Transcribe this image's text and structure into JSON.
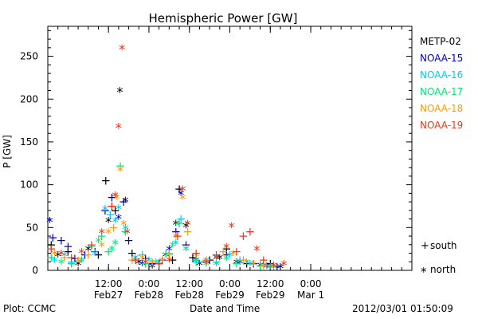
{
  "chart_data": {
    "type": "scatter",
    "title": "Hemispheric Power [GW]",
    "xlabel": "Date and Time",
    "ylabel": "P [GW]",
    "ylim": [
      0,
      285
    ],
    "xlim_hours": [
      0,
      108
    ],
    "x_units": "hours after 2012-02-26 18:00 UT",
    "yticks": [
      0,
      50,
      100,
      150,
      200,
      250
    ],
    "xticks": [
      {
        "h": 18,
        "time": "12:00",
        "date": "Feb27"
      },
      {
        "h": 30,
        "time": "0:00",
        "date": "Feb28"
      },
      {
        "h": 42,
        "time": "12:00",
        "date": "Feb28"
      },
      {
        "h": 54,
        "time": "0:00",
        "date": "Feb29"
      },
      {
        "h": 66,
        "time": "12:00",
        "date": "Feb29"
      },
      {
        "h": 78,
        "time": "0:00",
        "date": "Mar 1"
      }
    ],
    "grid": false,
    "legend": {
      "placement": "right",
      "hemisphere_keys": [
        {
          "symbol": "+",
          "label": "south"
        },
        {
          "symbol": "*",
          "label": "north"
        }
      ]
    },
    "series": [
      {
        "name": "METP-02",
        "color": "#000000",
        "points": [
          [
            1,
            30,
            "+"
          ],
          [
            3,
            18,
            "*"
          ],
          [
            6,
            22,
            "+"
          ],
          [
            9,
            8,
            "*"
          ],
          [
            12,
            25,
            "*"
          ],
          [
            15,
            18,
            "+"
          ],
          [
            17.2,
            105,
            "+"
          ],
          [
            18,
            58,
            "*"
          ],
          [
            19,
            75,
            "+"
          ],
          [
            20,
            70,
            "+"
          ],
          [
            21.4,
            210,
            "*"
          ],
          [
            23,
            82,
            "*"
          ],
          [
            25,
            20,
            "+"
          ],
          [
            27,
            10,
            "*"
          ],
          [
            29,
            14,
            "+"
          ],
          [
            31,
            5,
            "*"
          ],
          [
            33,
            8,
            "+"
          ],
          [
            35,
            18,
            "*"
          ],
          [
            37,
            12,
            "+"
          ],
          [
            38,
            55,
            "*"
          ],
          [
            39,
            95,
            "+"
          ],
          [
            41,
            52,
            "*"
          ],
          [
            43,
            15,
            "+"
          ],
          [
            45,
            8,
            "*"
          ],
          [
            48,
            12,
            "+"
          ],
          [
            51,
            15,
            "*"
          ],
          [
            53,
            25,
            "+"
          ],
          [
            56,
            10,
            "*"
          ],
          [
            59,
            8,
            "+"
          ],
          [
            63,
            6,
            "*"
          ],
          [
            66,
            8,
            "+"
          ],
          [
            69,
            4,
            "*"
          ]
        ]
      },
      {
        "name": "NOAA-15",
        "color": "#0000cd",
        "points": [
          [
            0.6,
            58,
            "*"
          ],
          [
            1.5,
            38,
            "+"
          ],
          [
            4,
            35,
            "+"
          ],
          [
            6,
            28,
            "+"
          ],
          [
            8,
            14,
            "+"
          ],
          [
            11,
            18,
            "+"
          ],
          [
            14,
            22,
            "+"
          ],
          [
            17,
            70,
            "+"
          ],
          [
            19,
            85,
            "+"
          ],
          [
            21,
            62,
            "*"
          ],
          [
            22.5,
            80,
            "+"
          ],
          [
            24,
            35,
            "+"
          ],
          [
            26,
            12,
            "+"
          ],
          [
            28,
            8,
            "*"
          ],
          [
            31,
            8,
            "+"
          ],
          [
            34,
            12,
            "+"
          ],
          [
            36,
            25,
            "*"
          ],
          [
            38,
            45,
            "+"
          ],
          [
            39.5,
            90,
            "*"
          ],
          [
            41,
            30,
            "+"
          ],
          [
            44,
            12,
            "*"
          ],
          [
            47,
            10,
            "+"
          ],
          [
            50,
            15,
            "*"
          ],
          [
            53,
            18,
            "+"
          ],
          [
            57,
            10,
            "*"
          ],
          [
            61,
            8,
            "+"
          ],
          [
            65,
            5,
            "*"
          ],
          [
            68,
            4,
            "+"
          ]
        ]
      },
      {
        "name": "NOAA-16",
        "color": "#00c8ff",
        "points": [
          [
            2,
            12,
            "*"
          ],
          [
            5,
            18,
            "*"
          ],
          [
            7,
            10,
            "+"
          ],
          [
            10,
            12,
            "*"
          ],
          [
            14,
            20,
            "*"
          ],
          [
            17,
            72,
            "*"
          ],
          [
            18.5,
            65,
            "+"
          ],
          [
            20,
            58,
            "*"
          ],
          [
            21,
            73,
            "*"
          ],
          [
            23,
            50,
            "*"
          ],
          [
            26,
            15,
            "*"
          ],
          [
            28,
            18,
            "+"
          ],
          [
            30,
            12,
            "*"
          ],
          [
            33,
            10,
            "*"
          ],
          [
            36,
            20,
            "+"
          ],
          [
            38,
            32,
            "*"
          ],
          [
            39.5,
            60,
            "+"
          ],
          [
            41,
            25,
            "*"
          ],
          [
            44,
            10,
            "+"
          ],
          [
            47,
            12,
            "*"
          ],
          [
            50,
            8,
            "*"
          ],
          [
            54,
            18,
            "*"
          ],
          [
            57,
            12,
            "+"
          ],
          [
            60,
            8,
            "*"
          ],
          [
            64,
            6,
            "*"
          ],
          [
            67,
            5,
            "+"
          ]
        ]
      },
      {
        "name": "NOAA-17",
        "color": "#00e676",
        "points": [
          [
            1,
            15,
            "+"
          ],
          [
            4,
            10,
            "*"
          ],
          [
            7,
            8,
            "+"
          ],
          [
            10,
            12,
            "*"
          ],
          [
            13,
            28,
            "+"
          ],
          [
            15,
            35,
            "*"
          ],
          [
            16,
            40,
            "+"
          ],
          [
            18,
            22,
            "+"
          ],
          [
            19,
            25,
            "*"
          ],
          [
            20,
            32,
            "*"
          ],
          [
            21.5,
            122,
            "+"
          ],
          [
            23,
            45,
            "+"
          ],
          [
            26,
            12,
            "*"
          ],
          [
            29,
            8,
            "+"
          ],
          [
            32,
            10,
            "*"
          ],
          [
            35,
            20,
            "+"
          ],
          [
            37,
            30,
            "*"
          ],
          [
            39,
            55,
            "+"
          ],
          [
            41,
            25,
            "*"
          ],
          [
            44,
            12,
            "+"
          ],
          [
            47,
            8,
            "*"
          ],
          [
            50,
            10,
            "+"
          ],
          [
            53,
            14,
            "*"
          ],
          [
            56,
            8,
            "+"
          ],
          [
            59,
            10,
            "*"
          ],
          [
            63,
            5,
            "+"
          ],
          [
            66,
            4,
            "*"
          ]
        ]
      },
      {
        "name": "NOAA-18",
        "color": "#ff9a00",
        "points": [
          [
            2,
            20,
            "*"
          ],
          [
            5,
            15,
            "+"
          ],
          [
            9,
            12,
            "*"
          ],
          [
            12,
            18,
            "+"
          ],
          [
            16,
            30,
            "*"
          ],
          [
            18,
            45,
            "*"
          ],
          [
            19.5,
            50,
            "+"
          ],
          [
            20.5,
            85,
            "*"
          ],
          [
            21.5,
            118,
            "*"
          ],
          [
            22.5,
            55,
            "*"
          ],
          [
            25,
            12,
            "+"
          ],
          [
            28,
            15,
            "*"
          ],
          [
            31,
            10,
            "+"
          ],
          [
            34,
            12,
            "*"
          ],
          [
            36,
            18,
            "+"
          ],
          [
            38,
            40,
            "*"
          ],
          [
            40,
            85,
            "*"
          ],
          [
            41.5,
            45,
            "+"
          ],
          [
            44,
            18,
            "*"
          ],
          [
            47,
            12,
            "+"
          ],
          [
            50,
            16,
            "*"
          ],
          [
            52,
            22,
            "+"
          ],
          [
            55,
            20,
            "*"
          ],
          [
            58,
            12,
            "+"
          ],
          [
            61,
            8,
            "*"
          ],
          [
            64,
            6,
            "+"
          ],
          [
            67,
            4,
            "*"
          ]
        ]
      },
      {
        "name": "NOAA-19",
        "color": "#e8391d",
        "points": [
          [
            1,
            25,
            "+"
          ],
          [
            4,
            20,
            "*"
          ],
          [
            7,
            15,
            "+"
          ],
          [
            10,
            22,
            "*"
          ],
          [
            13,
            30,
            "+"
          ],
          [
            16,
            45,
            "*"
          ],
          [
            19,
            75,
            "+"
          ],
          [
            20,
            88,
            "*"
          ],
          [
            21,
            168,
            "*"
          ],
          [
            22,
            260,
            "*"
          ],
          [
            23.5,
            45,
            "*"
          ],
          [
            26,
            12,
            "+"
          ],
          [
            29,
            10,
            "*"
          ],
          [
            33,
            8,
            "+"
          ],
          [
            36,
            12,
            "*"
          ],
          [
            38.5,
            40,
            "+"
          ],
          [
            40,
            95,
            "*"
          ],
          [
            41.5,
            55,
            "*"
          ],
          [
            44,
            20,
            "+"
          ],
          [
            47,
            10,
            "*"
          ],
          [
            50,
            18,
            "+"
          ],
          [
            53,
            28,
            "*"
          ],
          [
            54.5,
            52,
            "*"
          ],
          [
            56,
            22,
            "+"
          ],
          [
            58,
            40,
            "+"
          ],
          [
            60,
            45,
            "+"
          ],
          [
            62,
            25,
            "*"
          ],
          [
            64,
            12,
            "+"
          ],
          [
            67,
            6,
            "*"
          ],
          [
            70,
            8,
            "*"
          ]
        ]
      }
    ]
  },
  "footer": {
    "left": "Plot: CCMC",
    "center": "Date and Time",
    "right": "2012/03/01  01:50:09"
  }
}
